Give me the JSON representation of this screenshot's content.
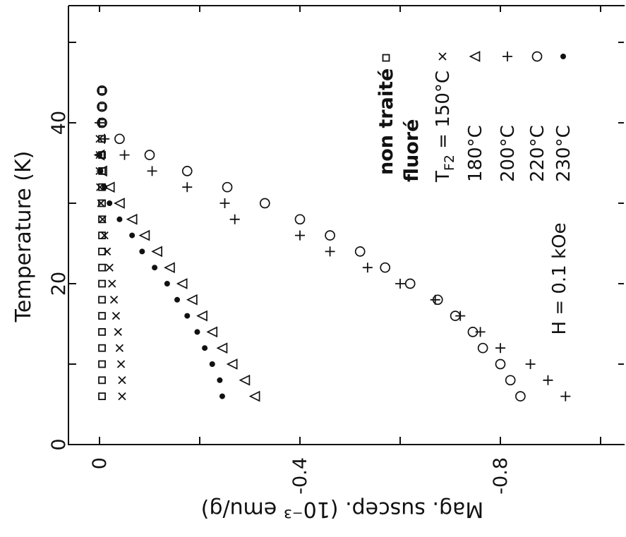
{
  "chart_data": {
    "type": "scatter",
    "xlabel": "Temperature (K)",
    "ylabel": "Mag. suscep. (10⁻³ emu/g)",
    "xlim": [
      0,
      55
    ],
    "ylim": [
      0,
      -1.05
    ],
    "x_ticks": [
      0,
      20,
      40
    ],
    "y_ticks": [
      {
        "value": 0,
        "label": "0"
      },
      {
        "value": -0.4,
        "label": "-0.4"
      },
      {
        "value": -0.8,
        "label": "-0.8"
      }
    ],
    "grid": false,
    "legend_position": "upper right (rotated)",
    "annotation": "H = 0.1 kOe",
    "legend": [
      {
        "label": "non traité",
        "marker": "square",
        "bold": true
      },
      {
        "label": "fluoré",
        "marker": "",
        "bold": true
      },
      {
        "label": "T",
        "sub": "F2",
        "after": " = 150°C",
        "marker": "x"
      },
      {
        "label": "180°C",
        "marker": "triangle"
      },
      {
        "label": "200°C",
        "marker": "plus"
      },
      {
        "label": "220°C",
        "marker": "circle"
      },
      {
        "label": "230°C",
        "marker": "dot"
      }
    ],
    "series": [
      {
        "name": "non traité",
        "marker": "square",
        "x": [
          6,
          8,
          10,
          12,
          14,
          16,
          18,
          20,
          22,
          24,
          26,
          28,
          30,
          32,
          34,
          36,
          38,
          40,
          42,
          44
        ],
        "y": [
          -0.005,
          -0.005,
          -0.005,
          -0.005,
          -0.005,
          -0.005,
          -0.005,
          -0.005,
          -0.005,
          -0.005,
          -0.005,
          -0.005,
          -0.005,
          -0.005,
          -0.005,
          -0.005,
          -0.005,
          -0.005,
          -0.005,
          -0.005
        ]
      },
      {
        "name": "150°C",
        "marker": "x",
        "x": [
          6,
          8,
          10,
          12,
          14,
          16,
          18,
          20,
          22,
          24,
          26,
          28,
          30,
          32,
          34,
          36,
          38
        ],
        "y": [
          -0.045,
          -0.045,
          -0.043,
          -0.04,
          -0.037,
          -0.033,
          -0.029,
          -0.025,
          -0.02,
          -0.015,
          -0.01,
          -0.006,
          -0.003,
          -0.001,
          0.0,
          0.0,
          0.0
        ]
      },
      {
        "name": "180°C",
        "marker": "triangle",
        "x": [
          6,
          8,
          10,
          12,
          14,
          16,
          18,
          20,
          22,
          24,
          26,
          28,
          30,
          32,
          34,
          36
        ],
        "y": [
          -0.31,
          -0.29,
          -0.265,
          -0.245,
          -0.225,
          -0.205,
          -0.185,
          -0.165,
          -0.14,
          -0.115,
          -0.09,
          -0.065,
          -0.04,
          -0.02,
          -0.005,
          0.0
        ]
      },
      {
        "name": "200°C",
        "marker": "plus",
        "x": [
          6,
          8,
          10,
          12,
          14,
          16,
          18,
          20,
          22,
          24,
          26,
          28,
          30,
          32,
          34,
          36,
          38,
          40
        ],
        "y": [
          -0.93,
          -0.895,
          -0.86,
          -0.8,
          -0.76,
          -0.72,
          -0.67,
          -0.6,
          -0.535,
          -0.46,
          -0.4,
          -0.27,
          -0.25,
          -0.175,
          -0.105,
          -0.05,
          -0.01,
          0.0
        ]
      },
      {
        "name": "220°C",
        "marker": "circle",
        "x": [
          6,
          8,
          10,
          12,
          14,
          16,
          18,
          20,
          22,
          24,
          26,
          28,
          30,
          32,
          34,
          36,
          38,
          40,
          42,
          44
        ],
        "y": [
          -0.84,
          -0.82,
          -0.8,
          -0.765,
          -0.745,
          -0.71,
          -0.675,
          -0.62,
          -0.57,
          -0.52,
          -0.46,
          -0.4,
          -0.33,
          -0.255,
          -0.175,
          -0.1,
          -0.04,
          -0.005,
          -0.005,
          -0.005
        ]
      },
      {
        "name": "230°C",
        "marker": "dot",
        "x": [
          6,
          8,
          10,
          12,
          14,
          16,
          18,
          20,
          22,
          24,
          26,
          28,
          30,
          32,
          34,
          36
        ],
        "y": [
          -0.245,
          -0.24,
          -0.225,
          -0.21,
          -0.195,
          -0.175,
          -0.155,
          -0.135,
          -0.11,
          -0.085,
          -0.065,
          -0.04,
          -0.02,
          -0.01,
          -0.002,
          0.0
        ]
      }
    ]
  }
}
